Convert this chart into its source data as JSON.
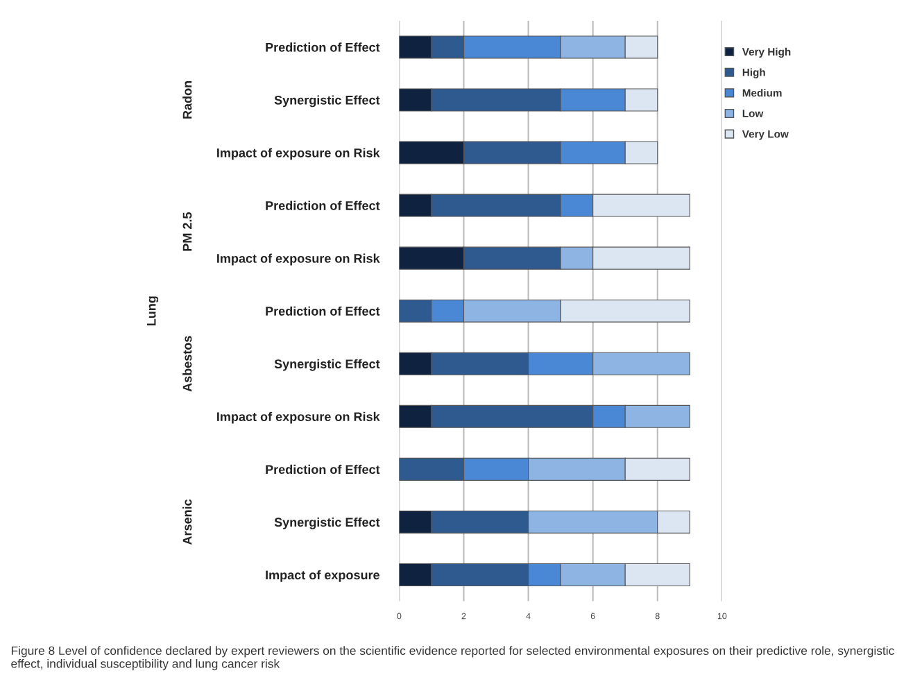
{
  "chart_data": {
    "type": "bar",
    "orientation": "horizontal",
    "stacked": true,
    "categories": [
      "Prediction of Effect",
      "Synergistic Effect",
      "Impact of exposure on Risk",
      "Prediction of Effect",
      "Impact of exposure on Risk",
      "Prediction of Effect",
      "Synergistic Effect",
      "Impact of exposure on Risk",
      "Prediction of Effect",
      "Synergistic Effect",
      "Impact of exposure"
    ],
    "series": [
      {
        "name": "Very High",
        "color": "#0f2340",
        "values": [
          1,
          1,
          2,
          1,
          2,
          0,
          1,
          1,
          0,
          1,
          1
        ]
      },
      {
        "name": "High",
        "color": "#2f5a8f",
        "values": [
          1,
          4,
          3,
          4,
          3,
          1,
          3,
          5,
          2,
          3,
          3
        ]
      },
      {
        "name": "Medium",
        "color": "#4a88d6",
        "values": [
          3,
          2,
          2,
          1,
          0,
          1,
          2,
          1,
          2,
          0,
          1
        ]
      },
      {
        "name": "Low",
        "color": "#8db4e2",
        "values": [
          2,
          0,
          0,
          0,
          1,
          3,
          3,
          2,
          3,
          4,
          2
        ]
      },
      {
        "name": "Very Low",
        "color": "#dce6f2",
        "values": [
          1,
          1,
          1,
          3,
          3,
          4,
          0,
          0,
          2,
          1,
          2
        ]
      }
    ],
    "xlim": [
      0,
      10
    ],
    "xticks": [
      0,
      2,
      4,
      6,
      8,
      10
    ],
    "grid": "x",
    "legend": "top right",
    "annotations": [
      "Radon",
      "PM 2.5",
      "Asbestos",
      "Arsenic",
      "Lung",
      "Figure 8 Level of confidence declared by expert reviewers on the scientific evidence reported for selected environmental exposures on their predictive role, synergistic effect, individual susceptibility and lung cancer risk"
    ]
  }
}
